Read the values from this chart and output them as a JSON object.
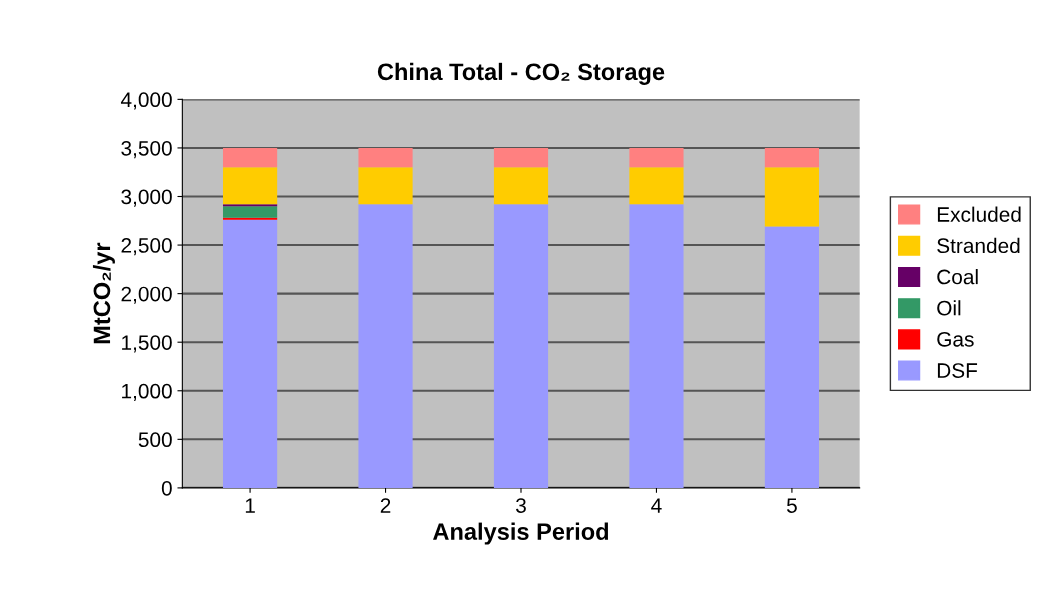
{
  "chart_data": {
    "type": "bar",
    "stacked": true,
    "title": "China Total - CO₂ Storage",
    "xlabel": "Analysis Period",
    "ylabel": "MtCO₂/yr",
    "categories": [
      "1",
      "2",
      "3",
      "4",
      "5"
    ],
    "series": [
      {
        "name": "DSF",
        "color": "#9999ff",
        "values": [
          2760,
          2920,
          2920,
          2920,
          2690
        ]
      },
      {
        "name": "Gas",
        "color": "#ff0000",
        "values": [
          20,
          0,
          0,
          0,
          0
        ]
      },
      {
        "name": "Oil",
        "color": "#339966",
        "values": [
          120,
          0,
          0,
          0,
          0
        ]
      },
      {
        "name": "Coal",
        "color": "#660066",
        "values": [
          20,
          0,
          0,
          0,
          0
        ]
      },
      {
        "name": "Stranded",
        "color": "#ffcc00",
        "values": [
          380,
          380,
          380,
          380,
          610
        ]
      },
      {
        "name": "Excluded",
        "color": "#ff8080",
        "values": [
          200,
          200,
          200,
          200,
          200
        ]
      }
    ],
    "ylim": [
      0,
      4000
    ],
    "yticks": [
      {
        "value": 0,
        "label": "0"
      },
      {
        "value": 500,
        "label": "500"
      },
      {
        "value": 1000,
        "label": "1,000"
      },
      {
        "value": 1500,
        "label": "1,500"
      },
      {
        "value": 2000,
        "label": "2,000"
      },
      {
        "value": 2500,
        "label": "2,500"
      },
      {
        "value": 3000,
        "label": "3,000"
      },
      {
        "value": 3500,
        "label": "3,500"
      },
      {
        "value": 4000,
        "label": "4,000"
      }
    ],
    "grid": "y",
    "legend": "right"
  }
}
